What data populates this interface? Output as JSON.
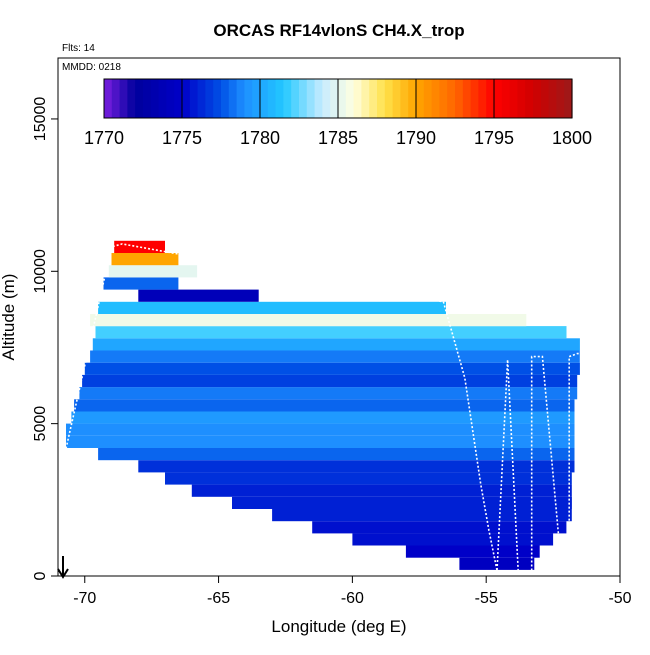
{
  "chart_data": {
    "type": "heatmap",
    "title": "ORCAS RF14vlonS CH4.X_trop",
    "xlabel": "Longitude (deg E)",
    "ylabel": "Altitude (m)",
    "xlim": [
      -71,
      -50
    ],
    "ylim": [
      0,
      17000
    ],
    "xticks": [
      -70,
      -65,
      -60,
      -55,
      -50
    ],
    "xtick_labels": [
      "-70",
      "-65",
      "-60",
      "-55",
      "-50"
    ],
    "yticks": [
      0,
      5000,
      10000,
      15000
    ],
    "ytick_labels": [
      "0",
      "5000",
      "10000",
      "15000"
    ],
    "annotations": {
      "flights": "Flts: 14",
      "mmdd": "MMDD: 0218"
    },
    "colorbar": {
      "min": 1770,
      "max": 1800,
      "ticks": [
        1770,
        1775,
        1780,
        1785,
        1790,
        1795,
        1800
      ],
      "tick_labels": [
        "1770",
        "1775",
        "1780",
        "1785",
        "1790",
        "1795",
        "1800"
      ],
      "stops": [
        {
          "v": 1770,
          "c": "#7b1fe0"
        },
        {
          "v": 1772,
          "c": "#00009c"
        },
        {
          "v": 1775,
          "c": "#0000c8"
        },
        {
          "v": 1777.5,
          "c": "#0050e6"
        },
        {
          "v": 1779,
          "c": "#1e8fff"
        },
        {
          "v": 1781.5,
          "c": "#22c8ff"
        },
        {
          "v": 1784,
          "c": "#c8ecff"
        },
        {
          "v": 1786,
          "c": "#ffffe0"
        },
        {
          "v": 1788,
          "c": "#ffe14a"
        },
        {
          "v": 1790,
          "c": "#ffa500"
        },
        {
          "v": 1792.5,
          "c": "#ff6600"
        },
        {
          "v": 1795,
          "c": "#ff0000"
        },
        {
          "v": 1797.5,
          "c": "#d00000"
        },
        {
          "v": 1800,
          "c": "#9c1a1a"
        }
      ]
    },
    "layers": [
      {
        "alt": 400,
        "lon_start": -56.0,
        "lon_end": -53.2,
        "ch4": 1774.5
      },
      {
        "alt": 800,
        "lon_start": -58.0,
        "lon_end": -53.0,
        "ch4": 1775.0
      },
      {
        "alt": 1200,
        "lon_start": -60.0,
        "lon_end": -52.5,
        "ch4": 1775.5
      },
      {
        "alt": 1600,
        "lon_start": -61.5,
        "lon_end": -52.0,
        "ch4": 1775.5
      },
      {
        "alt": 2000,
        "lon_start": -63.0,
        "lon_end": -51.8,
        "ch4": 1776.0
      },
      {
        "alt": 2400,
        "lon_start": -64.5,
        "lon_end": -51.8,
        "ch4": 1776.0
      },
      {
        "alt": 2800,
        "lon_start": -66.0,
        "lon_end": -51.8,
        "ch4": 1776.0
      },
      {
        "alt": 3200,
        "lon_start": -67.0,
        "lon_end": -51.8,
        "ch4": 1776.5
      },
      {
        "alt": 3600,
        "lon_start": -68.0,
        "lon_end": -51.7,
        "ch4": 1776.5
      },
      {
        "alt": 4000,
        "lon_start": -69.5,
        "lon_end": -51.7,
        "ch4": 1778.0
      },
      {
        "alt": 4400,
        "lon_start": -70.7,
        "lon_end": -51.7,
        "ch4": 1779.0
      },
      {
        "alt": 4800,
        "lon_start": -70.7,
        "lon_end": -51.7,
        "ch4": 1779.0
      },
      {
        "alt": 5200,
        "lon_start": -70.5,
        "lon_end": -51.7,
        "ch4": 1779.5
      },
      {
        "alt": 5600,
        "lon_start": -70.4,
        "lon_end": -51.7,
        "ch4": 1778.0
      },
      {
        "alt": 6000,
        "lon_start": -70.2,
        "lon_end": -51.6,
        "ch4": 1778.5
      },
      {
        "alt": 6400,
        "lon_start": -70.1,
        "lon_end": -51.6,
        "ch4": 1777.0
      },
      {
        "alt": 6800,
        "lon_start": -70.0,
        "lon_end": -51.5,
        "ch4": 1777.5
      },
      {
        "alt": 7200,
        "lon_start": -69.8,
        "lon_end": -51.5,
        "ch4": 1778.5
      },
      {
        "alt": 7600,
        "lon_start": -69.7,
        "lon_end": -51.5,
        "ch4": 1780.0
      },
      {
        "alt": 8000,
        "lon_start": -69.6,
        "lon_end": -52.0,
        "ch4": 1782.0
      },
      {
        "alt": 8400,
        "lon_start": -69.8,
        "lon_end": -53.5,
        "ch4": 1785.5
      },
      {
        "alt": 8800,
        "lon_start": -69.5,
        "lon_end": -56.5,
        "ch4": 1781.0
      },
      {
        "alt": 9200,
        "lon_start": -68.0,
        "lon_end": -63.5,
        "ch4": 1774.0
      },
      {
        "alt": 9600,
        "lon_start": -69.3,
        "lon_end": -66.5,
        "ch4": 1778.0
      },
      {
        "alt": 10000,
        "lon_start": -69.1,
        "lon_end": -65.8,
        "ch4": 1785.0
      },
      {
        "alt": 10400,
        "lon_start": -69.0,
        "lon_end": -66.5,
        "ch4": 1790.0
      },
      {
        "alt": 10800,
        "lon_start": -68.9,
        "lon_end": -67.0,
        "ch4": 1795.0
      }
    ],
    "flight_track": {
      "lon": [
        -70.8,
        -69.0,
        -68.6,
        -56.6,
        -55.8,
        -55.2,
        -54.9,
        -54.6,
        -54.6,
        -54.2,
        -54.2,
        -53.8,
        -53.3,
        -53.3,
        -52.9,
        -52.2,
        -51.9,
        -51.9,
        -51.6,
        -51.5
      ],
      "alt": [
        3800,
        10800,
        10900,
        9000,
        6500,
        3000,
        1500,
        200,
        100,
        7100,
        7100,
        100,
        100,
        7200,
        7200,
        400,
        400,
        7200,
        7300,
        7300
      ]
    }
  }
}
